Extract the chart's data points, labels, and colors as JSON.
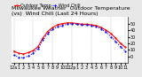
{
  "title": "Milwaukee Weather  Outdoor Temperature (vs)  Wind Chill (Last 24 Hours)",
  "legend_temp": "Outdoor Temp",
  "legend_wc": "Wind Chill",
  "background_color": "#e8e8e8",
  "plot_bg": "#ffffff",
  "grid_color": "#888888",
  "temp_color": "#ff0000",
  "wc_color": "#0000ff",
  "ylim": [
    -10,
    60
  ],
  "yticks": [
    0,
    10,
    20,
    30,
    40,
    50
  ],
  "ytick_labels": [
    "0",
    "10",
    "20",
    "30",
    "40",
    "50"
  ],
  "hours": [
    0,
    1,
    2,
    3,
    4,
    5,
    6,
    7,
    8,
    9,
    10,
    11,
    12,
    13,
    14,
    15,
    16,
    17,
    18,
    19,
    20,
    21,
    22,
    23
  ],
  "temp": [
    8,
    5,
    4,
    6,
    9,
    15,
    28,
    38,
    44,
    48,
    50,
    51,
    51,
    50,
    49,
    49,
    48,
    47,
    44,
    40,
    35,
    28,
    20,
    14
  ],
  "wind_chill": [
    2,
    -1,
    -2,
    1,
    5,
    12,
    25,
    35,
    41,
    45,
    47,
    49,
    50,
    49,
    48,
    48,
    47,
    45,
    42,
    37,
    30,
    23,
    15,
    8
  ],
  "xlabel_times": [
    "12a",
    "1",
    "2",
    "3",
    "4",
    "5",
    "6",
    "7",
    "8",
    "9",
    "10",
    "11",
    "12p",
    "1",
    "2",
    "3",
    "4",
    "5",
    "6",
    "7",
    "8",
    "9",
    "10",
    "11"
  ],
  "vgrid_positions": [
    0,
    4,
    8,
    12,
    16,
    20,
    23
  ],
  "title_fontsize": 4.5,
  "tick_fontsize": 3.5,
  "legend_fontsize": 3.5,
  "line_width": 0.8,
  "marker_size": 1.2
}
